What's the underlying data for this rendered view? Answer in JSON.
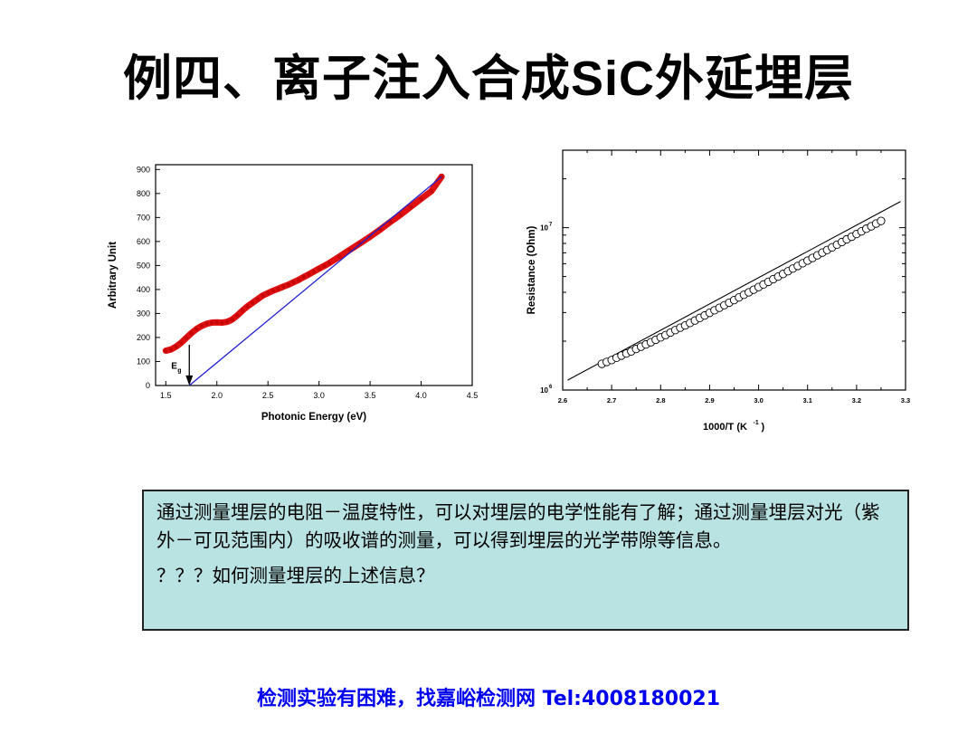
{
  "slide": {
    "title_prefix": "例四、离子注入合成",
    "title_latin": "SiC",
    "title_suffix": "外延埋层",
    "paragraph": "通过测量埋层的电阻－温度特性，可以对埋层的电学性能有了解；通过测量埋层对光（紫外－可见范围内）的吸收谱的测量，可以得到埋层的光学带隙等信息。",
    "question": "？？？如何测量埋层的上述信息？",
    "footer": "检测实验有困难，找嘉峪检测网 Tel:4008180021"
  },
  "chart_data": [
    {
      "type": "scatter",
      "xlabel": "Photonic Energy (eV)",
      "ylabel": "Arbitrary Unit",
      "xlim": [
        1.4,
        4.5
      ],
      "ylim": [
        0,
        920
      ],
      "xticks": [
        "1.5",
        "2.0",
        "2.5",
        "3.0",
        "3.5",
        "4.0",
        "4.5"
      ],
      "yticks": [
        "0",
        "100",
        "200",
        "300",
        "400",
        "500",
        "600",
        "700",
        "800",
        "900"
      ],
      "series": [
        {
          "color": "#e01010",
          "x": [
            1.5,
            1.55,
            1.6,
            1.65,
            1.7,
            1.75,
            1.8,
            1.85,
            1.9,
            1.95,
            2.0,
            2.05,
            2.1,
            2.15,
            2.2,
            2.25,
            2.3,
            2.35,
            2.4,
            2.45,
            2.5,
            2.55,
            2.6,
            2.65,
            2.7,
            2.75,
            2.8,
            2.85,
            2.9,
            2.95,
            3.0,
            3.05,
            3.1,
            3.2,
            3.3,
            3.4,
            3.5,
            3.6,
            3.7,
            3.8,
            3.9,
            4.0,
            4.1,
            4.2
          ],
          "y": [
            145,
            150,
            162,
            178,
            198,
            218,
            235,
            248,
            257,
            262,
            263,
            262,
            265,
            275,
            292,
            312,
            330,
            345,
            360,
            375,
            385,
            395,
            403,
            412,
            420,
            430,
            440,
            452,
            463,
            475,
            487,
            498,
            510,
            537,
            565,
            592,
            620,
            650,
            682,
            712,
            745,
            778,
            810,
            870
          ]
        },
        {
          "color": "#2020d0",
          "x": [
            1.73,
            4.2
          ],
          "y": [
            0,
            870
          ]
        }
      ],
      "annotations": [
        {
          "text": "E",
          "sub": "g",
          "x": 1.73
        }
      ]
    },
    {
      "type": "scatter",
      "xlabel": "1000/T (K",
      "xlabel_sup": "-1",
      "xlabel_end": ")",
      "ylabel": "Resistance (Ohm)",
      "xlim": [
        2.6,
        3.3
      ],
      "yscale": "log",
      "ylim": [
        1000000,
        30000000
      ],
      "xticks": [
        "2.6",
        "2.7",
        "2.8",
        "2.9",
        "3.0",
        "3.1",
        "3.2",
        "3.3"
      ],
      "yticks": [
        {
          "base": "10",
          "exp": "6",
          "value": 1000000
        },
        {
          "base": "10",
          "exp": "7",
          "value": 10000000
        }
      ],
      "series": [
        {
          "marker": "open-circle",
          "x": [
            2.68,
            2.69,
            2.7,
            2.71,
            2.72,
            2.73,
            2.74,
            2.75,
            2.76,
            2.77,
            2.78,
            2.79,
            2.8,
            2.81,
            2.82,
            2.83,
            2.84,
            2.85,
            2.86,
            2.87,
            2.88,
            2.89,
            2.9,
            2.91,
            2.92,
            2.93,
            2.94,
            2.95,
            2.96,
            2.97,
            2.98,
            2.99,
            3.0,
            3.01,
            3.02,
            3.03,
            3.04,
            3.05,
            3.06,
            3.07,
            3.08,
            3.09,
            3.1,
            3.11,
            3.12,
            3.13,
            3.14,
            3.15,
            3.16,
            3.17,
            3.18,
            3.19,
            3.2,
            3.21,
            3.22,
            3.23,
            3.24,
            3.25
          ],
          "y": [
            1450000,
            1490000,
            1530000,
            1580000,
            1630000,
            1680000,
            1730000,
            1790000,
            1850000,
            1910000,
            1970000,
            2040000,
            2110000,
            2180000,
            2260000,
            2340000,
            2420000,
            2500000,
            2590000,
            2680000,
            2780000,
            2880000,
            2990000,
            3100000,
            3210000,
            3330000,
            3450000,
            3580000,
            3720000,
            3860000,
            4000000,
            4150000,
            4310000,
            4470000,
            4640000,
            4820000,
            5000000,
            5190000,
            5390000,
            5600000,
            5810000,
            6040000,
            6270000,
            6510000,
            6760000,
            7020000,
            7290000,
            7570000,
            7860000,
            8160000,
            8480000,
            8800000,
            9140000,
            9490000,
            9860000,
            10200000,
            10600000,
            11000000
          ]
        },
        {
          "type": "line",
          "x": [
            2.61,
            3.29
          ],
          "y": [
            1150000,
            14500000
          ]
        }
      ]
    }
  ]
}
